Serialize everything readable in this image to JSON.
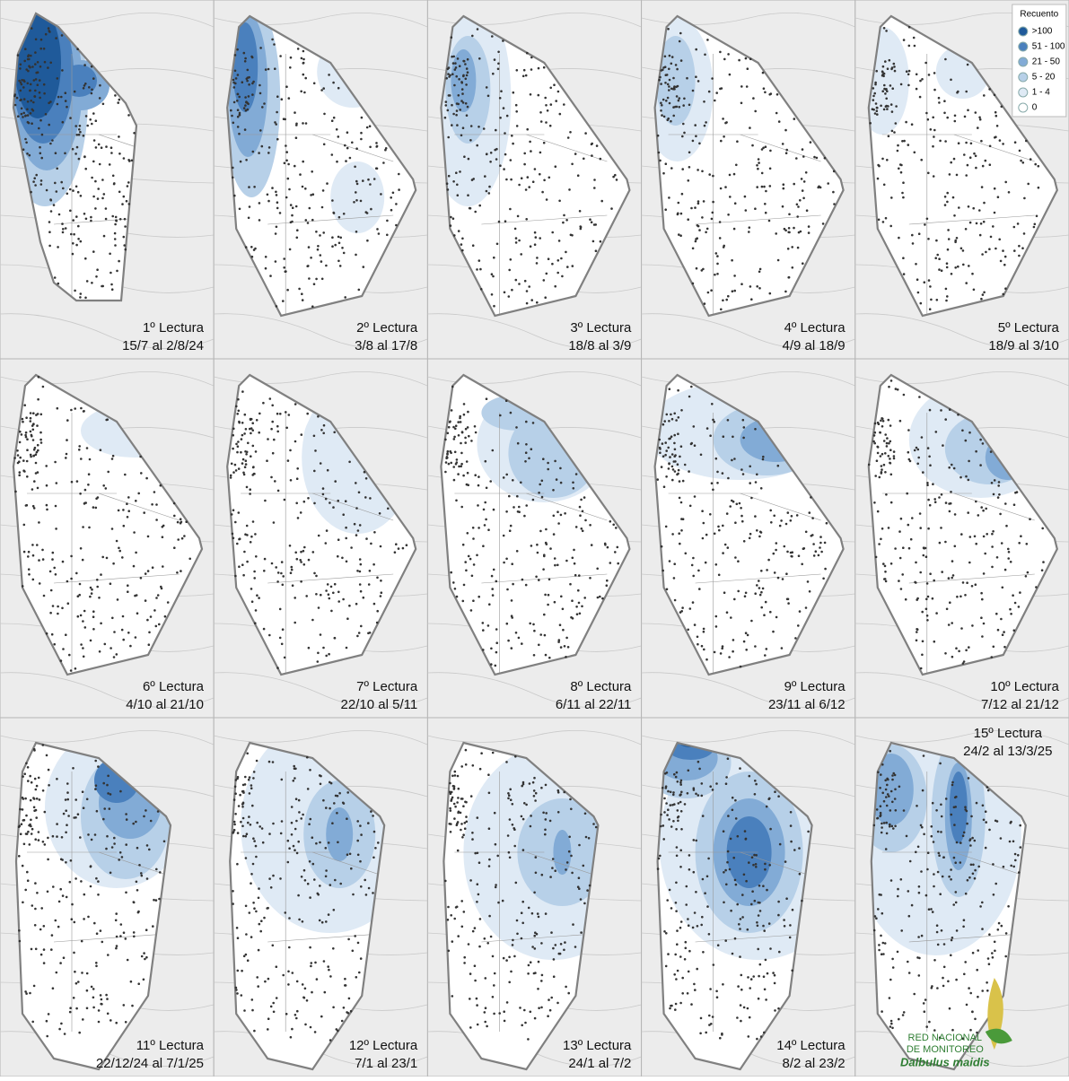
{
  "panels": [
    {
      "title": "1º Lectura",
      "dates": "15/7 al 2/8/24"
    },
    {
      "title": "2º Lectura",
      "dates": "3/8 al 17/8"
    },
    {
      "title": "3º Lectura",
      "dates": "18/8 al 3/9"
    },
    {
      "title": "4º Lectura",
      "dates": "4/9 al 18/9"
    },
    {
      "title": "5º Lectura",
      "dates": "18/9 al 3/10"
    },
    {
      "title": "6º Lectura",
      "dates": "4/10 al 21/10"
    },
    {
      "title": "7º Lectura",
      "dates": "22/10 al 5/11"
    },
    {
      "title": "8º Lectura",
      "dates": "6/11 al 22/11"
    },
    {
      "title": "9º Lectura",
      "dates": "23/11 al 6/12"
    },
    {
      "title": "10º Lectura",
      "dates": "7/12 al 21/12"
    },
    {
      "title": "11º Lectura",
      "dates": "22/12/24 al 7/1/25"
    },
    {
      "title": "12º Lectura",
      "dates": "7/1 al 23/1"
    },
    {
      "title": "13º Lectura",
      "dates": "24/1 al 7/2"
    },
    {
      "title": "14º Lectura",
      "dates": "8/2 al 23/2"
    },
    {
      "title": "15º Lectura",
      "dates": "24/2 al 13/3/25"
    }
  ],
  "legend": {
    "title": "Recuento",
    "items": [
      {
        "label": ">100",
        "color": "#1f5a9a"
      },
      {
        "label": "51 - 100",
        "color": "#4a80bd"
      },
      {
        "label": "21 - 50",
        "color": "#82abd6"
      },
      {
        "label": "5 - 20",
        "color": "#b7d0e8"
      },
      {
        "label": "1 - 4",
        "color": "#dfeaf5"
      },
      {
        "label": "0",
        "color": "#ffffff"
      }
    ]
  },
  "logo": {
    "line1": "RED NACIONAL",
    "line2": "DE MONITOREO",
    "species": "Dalbulus maidis"
  }
}
